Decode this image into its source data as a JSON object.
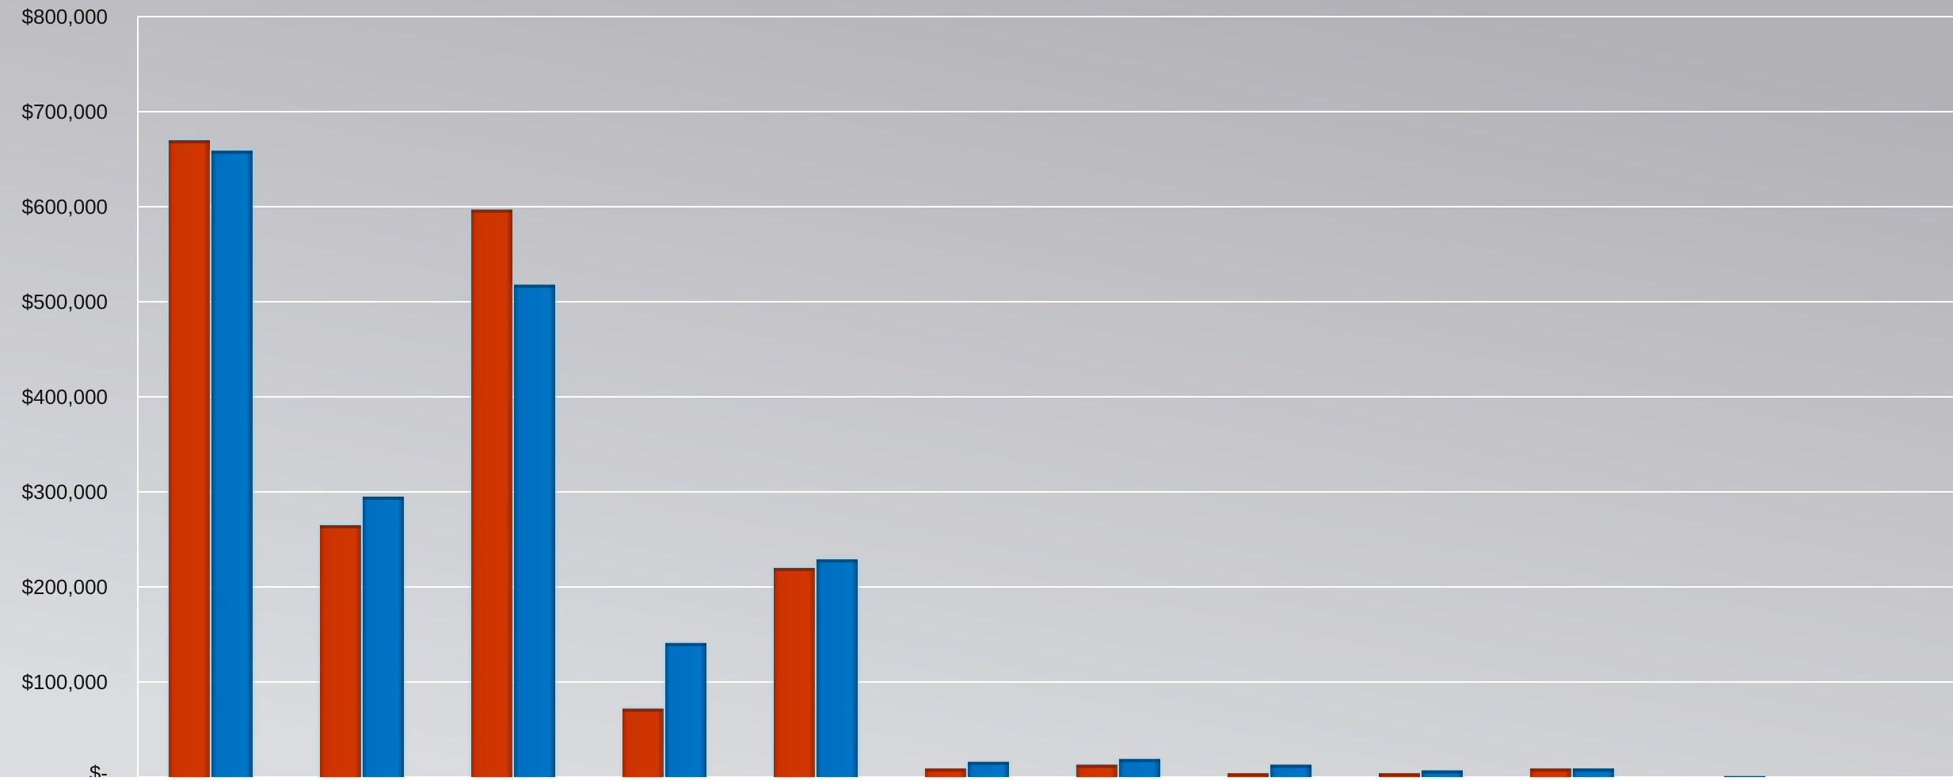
{
  "chart_data": {
    "type": "bar",
    "title": "",
    "xlabel": "",
    "ylabel": "",
    "ylim": [
      0,
      800000
    ],
    "yticks": [
      0,
      100000,
      200000,
      300000,
      400000,
      500000,
      600000,
      700000,
      800000
    ],
    "ytick_labels": [
      "$-",
      "$100,000",
      "$200,000",
      "$300,000",
      "$400,000",
      "$500,000",
      "$600,000",
      "$700,000",
      "$800,000"
    ],
    "grid": true,
    "legend": "none",
    "categories": [
      "",
      "",
      "",
      "",
      "",
      "",
      "",
      "",
      "",
      "",
      "",
      ""
    ],
    "series": [
      {
        "color": "#cc3300",
        "values": [
          670000,
          265000,
          597000,
          72000,
          220000,
          9000,
          13000,
          4000,
          4000,
          9000,
          0,
          0
        ]
      },
      {
        "color": "#0070c0",
        "values": [
          659000,
          295000,
          518000,
          141000,
          229000,
          16000,
          19000,
          13000,
          7000,
          9000,
          1000,
          0
        ]
      }
    ],
    "colors": {
      "background_top": "#b4b3b8",
      "background_bottom": "#d8dade",
      "gridline": "#ffffff",
      "bar_glow": "#7fd6ee",
      "axis_text": "#111111"
    }
  }
}
